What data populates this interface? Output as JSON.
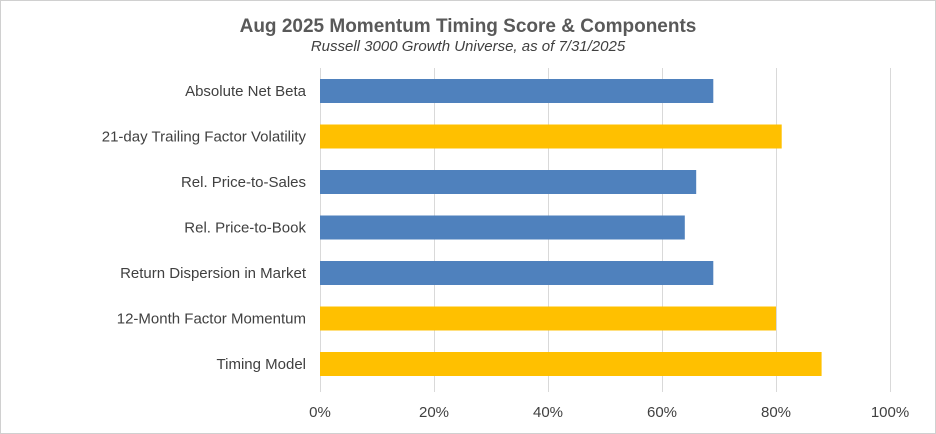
{
  "chart_data": {
    "type": "bar",
    "orientation": "horizontal",
    "title": "Aug 2025 Momentum Timing Score & Components",
    "subtitle": "Russell 3000 Growth Universe, as of 7/31/2025",
    "categories": [
      "Absolute Net Beta",
      "21-day Trailing Factor Volatility",
      "Rel. Price-to-Sales",
      "Rel. Price-to-Book",
      "Return Dispersion in Market",
      "12-Month Factor Momentum",
      "Timing Model"
    ],
    "values": [
      0.69,
      0.81,
      0.66,
      0.64,
      0.69,
      0.8,
      0.88
    ],
    "bar_colors": [
      "#4F81BD",
      "#FFC000",
      "#4F81BD",
      "#4F81BD",
      "#4F81BD",
      "#FFC000",
      "#FFC000"
    ],
    "xlim": [
      0,
      1
    ],
    "xticks": [
      0,
      0.2,
      0.4,
      0.6,
      0.8,
      1.0
    ],
    "xtick_labels": [
      "0%",
      "20%",
      "40%",
      "60%",
      "80%",
      "100%"
    ],
    "xlabel": "",
    "ylabel": "",
    "grid": "vertical",
    "legend": "none"
  }
}
